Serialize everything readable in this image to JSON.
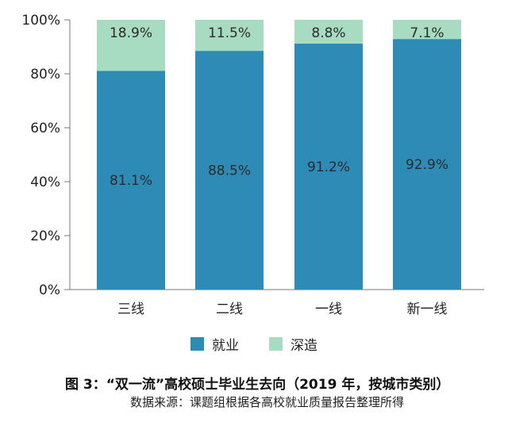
{
  "chart_data": {
    "type": "bar",
    "stacked": true,
    "categories": [
      "三线",
      "二线",
      "一线",
      "新一线"
    ],
    "series": [
      {
        "name": "就业",
        "values": [
          81.1,
          88.5,
          91.2,
          92.9
        ],
        "labels": [
          "81.1%",
          "88.5%",
          "91.2%",
          "92.9%"
        ],
        "color": "#2e8bb6"
      },
      {
        "name": "深造",
        "values": [
          18.9,
          11.5,
          8.8,
          7.1
        ],
        "labels": [
          "18.9%",
          "11.5%",
          "8.8%",
          "7.1%"
        ],
        "color": "#a7dcc3"
      }
    ],
    "yticks": [
      "0%",
      "20%",
      "40%",
      "60%",
      "80%",
      "100%"
    ],
    "ylim": [
      0,
      100
    ],
    "grid": false,
    "legend": "bottom",
    "title": "图 3：“双一流”高校硕士毕业生去向（2019 年，按城市类别）",
    "source": "数据来源：课题组根据各高校就业质量报告整理所得"
  }
}
